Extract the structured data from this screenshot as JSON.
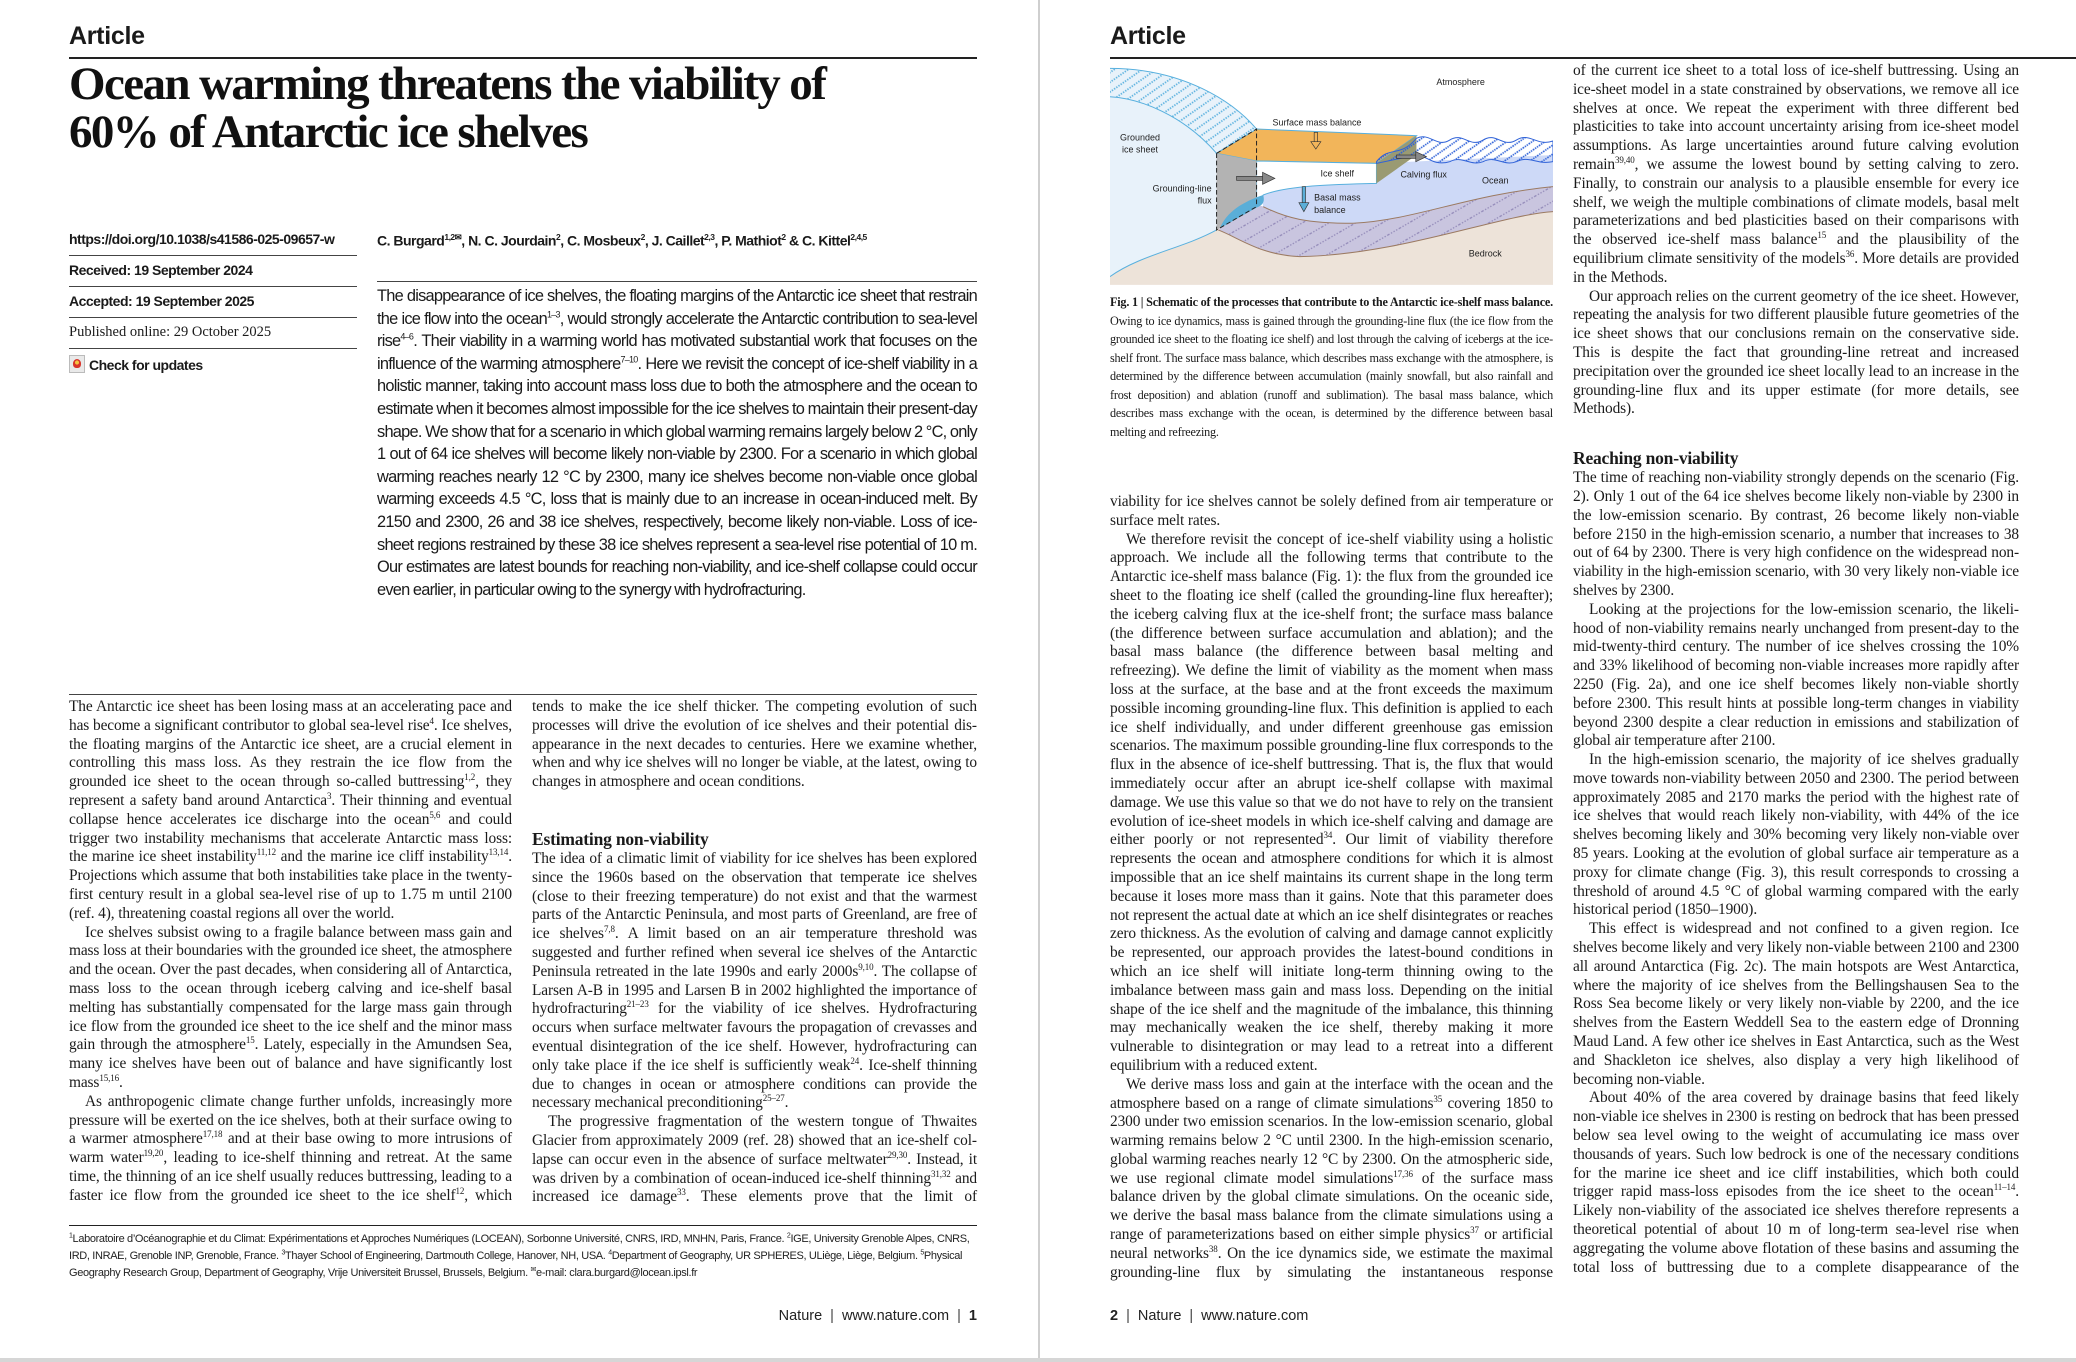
{
  "left_page": {
    "section_label": "Article",
    "title_lines": [
      "Ocean warming threatens the viability of",
      "60% of Antarctic ice shelves"
    ],
    "sidebar": {
      "doi": "https://doi.org/10.1038/s41586-025-09657-w",
      "received": "Received: 19 September 2024",
      "accepted": "Accepted: 19 September 2025",
      "published": "Published online: 29 October 2025",
      "check_updates": "Check for updates"
    },
    "authors": "C. Burgard^{1,2✉}, N. C. Jourdain^{2}, C. Mosbeux^{2}, J. Caillet^{2,3}, P. Mathiot^{2} & C. Kittel^{2,4,5}",
    "abstract": "The disappearance of ice shelves, the floating margins of the Antarctic ice sheet that restrain the ice flow into the ocean^{1–3}, would strongly accelerate the Antarctic contribution to sea-level rise^{4–6}. Their viability in a warming world has motivated substantial work that focuses on the influence of the warming atmosphere^{7–10}. Here we revisit the concept of ice-shelf viability in a holistic manner, taking into account mass loss due to both the atmosphere and the ocean to estimate when it becomes almost impossible for the ice shelves to maintain their present-day shape. We show that for a scenario in which global warming remains largely below 2 °C, only 1 out of 64 ice shelves will become likely non-viable by 2300. For a scenario in which global warming reaches nearly 12 °C by 2300, many ice shelves become non-viable once global warming exceeds 4.5 °C, loss that is mainly due to an increase in ocean-induced melt. By 2150 and 2300, 26 and 38 ice shelves, respectively, become likely non-viable. Loss of ice-sheet regions restrained by these 38 ice shelves represent a sea-level rise potential of 10 m. Our estimates are latest bounds for reaching non-viability, and ice-shelf collapse could occur even earlier, in particular owing to the synergy with hydrofracturing.",
    "col1": [
      "The Antarctic ice sheet has been losing mass at an accelerating pace and has become a significant contributor to global sea-level rise^{4}. Ice shelves, the floating margins of the Antarctic ice sheet, are a crucial element in controlling this mass loss. As they restrain the ice flow from the grounded ice sheet to the ocean through so-called buttressing^{1,2}, they represent a safety band around Antarctica^{3}. Their thinning and eventual collapse hence accelerates ice discharge into the ocean^{5,6} and could trigger two instability mechanisms that accelerate Antarctic mass loss: the marine ice sheet instability^{11,12} and the marine ice cliff instability^{13,14}. Projections which assume that both instabilities take place in the twenty-first century result in a global sea-level rise of up to 1.75 m until 2100 (ref. 4), threatening coastal regions all over the world.",
      "Ice shelves subsist owing to a fragile balance between mass gain and mass loss at their boundaries with the grounded ice sheet, the atmosphere and the ocean. Over the past decades, when considering all of Antarctica, mass loss to the ocean through iceberg calving and ice-shelf basal melting has substantially compensated for the large mass gain through ice flow from the grounded ice sheet to the ice shelf and the minor mass gain through the atmosphere^{15}. Lately, especially in the Amundsen Sea, many ice shelves have been out of balance and have significantly lost mass^{15,16}.",
      "As anthropogenic climate change further unfolds, increasingly more pressure will be exerted on the ice shelves, both at their surface owing to a warmer atmosphere^{17,18} and at their base owing to more intrusions of warm water^{19,20}, leading to ice-shelf thinning and retreat. At the same time, the thinning of an ice shelf usually reduces buttressing, leading to a faster ice flow from the grounded ice sheet to the ice shelf^{12}, which"
    ],
    "col2_cont": "tends to make the ice shelf thicker. The competing evolution of such processes will drive the evolution of ice shelves and their potential dis­appearance in the next decades to centuries. Here we examine whether, when and why ice shelves will no longer be viable, at the latest, owing to changes in atmosphere and ocean conditions.",
    "heading_estimating": "Estimating non-viability",
    "col2": [
      "The idea of a climatic limit of viability for ice shelves has been explored since the 1960s based on the observation that temperate ice shelves (close to their freezing temperature) do not exist and that the warm­est parts of the Antarctic Peninsula, and most parts of Greenland, are free of ice shelves^{7,8}. A limit based on an air temperature threshold was suggested and further refined when several ice shelves of the Antarctic Peninsula retreated in the late 1990s and early 2000s^{9,10}. The collapse of Larsen A-B in 1995 and Larsen B in 2002 highlighted the importance of hydrofracturing^{21–23} for the viability of ice shelves. Hydrofracturing occurs when surface meltwater favours the propagation of crevasses and eventual disintegration of the ice shelf. However, hydrofracturing can only take place if the ice shelf is sufficiently weak^{24}. Ice-shelf thin­ning due to changes in ocean or atmosphere conditions can provide the necessary mechanical preconditioning^{25–27}.",
      "The progressive fragmentation of the western tongue of Thwaites Glacier from approximately 2009 (ref. 28) showed that an ice-shelf col­lapse can occur even in the absence of surface meltwater^{29,30}. Instead, it was driven by a combination of ocean-induced ice-shelf thinning^{31,32} and increased ice damage^{33}. These elements prove that the limit of"
    ],
    "affiliations": "^{1}Laboratoire d’Océanographie et du Climat: Expérimentations et Approches Numériques (LOCEAN), Sorbonne Université, CNRS, IRD, MNHN, Paris, France. ^{2}IGE, University Grenoble Alpes, CNRS, IRD, INRAE, Grenoble INP, Grenoble, France. ^{3}Thayer School of Engineering, Dartmouth College, Hanover, NH, USA. ^{4}Department of Geography, UR SPHERES, ULiège, Liège, Belgium. ^{5}Physical Geography Research Group, Department of Geography, Vrije Universiteit Brussel, Brussels, Belgium. ^{✉}e-mail: clara.burgard@locean.ipsl.fr",
    "footer": {
      "journal": "Nature",
      "site": "www.nature.com",
      "page": "1"
    }
  },
  "right_page": {
    "section_label": "Article",
    "figure": {
      "labels": {
        "atmosphere": "Atmosphere",
        "surface_mass_balance": "Surface mass balance",
        "grounded_ice_sheet_1": "Grounded",
        "grounded_ice_sheet_2": "ice sheet",
        "ice_shelf": "Ice shelf",
        "grounding_line_flux_1": "Grounding-line",
        "grounding_line_flux_2": "flux",
        "basal_mass_balance_1": "Basal mass",
        "basal_mass_balance_2": "balance",
        "calving_flux": "Calving flux",
        "ocean": "Ocean",
        "bedrock": "Bedrock"
      },
      "colors": {
        "ice_shelf_top": "#f2b55a",
        "ocean": "#cdd9f7",
        "grounded_ice": "#e8f2fa",
        "bedrock": "#ede3d9",
        "sediment": "#c9c5df",
        "flux_plane": "#b3b3b3",
        "ice_outline": "#58b0de",
        "sea_surface": "#2f62d8"
      },
      "caption_bold": "Fig. 1 | Schematic of the processes that contribute to the Antarctic ice-shelf mass balance.",
      "caption_text": " Owing to ice dynamics, mass is gained through the grounding-line flux (the ice flow from the grounded ice sheet to the floating ice shelf) and lost through the calving of icebergs at the ice-shelf front. The surface mass balance, which describes mass exchange with the atmosphere, is determined by the difference between accumulation (mainly snowfall, but also rainfall and frost deposition) and ablation (runoff and sublimation). The basal mass balance, which describes mass exchange with the ocean, is determined by the difference between basal melting and refreezing."
    },
    "col1_cont": "viability for ice shelves cannot be solely defined from air temperature or surface melt rates.",
    "col1": [
      "We therefore revisit the concept of ice-shelf viability using a holistic approach. We include all the following terms that contribute to the Antarctic ice-shelf mass balance (Fig. 1): the flux from the grounded ice sheet to the floating ice shelf (called the grounding-line flux here­after); the iceberg calving flux at the ice-shelf front; the surface mass balance (the difference between surface accumulation and ablation); and the basal mass balance (the difference between basal melting and refreezing). We define the limit of viability as the moment when mass loss at the surface, at the base and at the front exceeds the maximum possible incoming grounding-line flux. This definition is applied to each ice shelf individually, and under different greenhouse gas emission scenarios. The maximum possible grounding-line flux corresponds to the flux in the absence of ice-shelf buttressing. That is, the flux that would immediately occur after an abrupt ice-shelf collapse with maxi­mal damage. We use this value so that we do not have to rely on the transient evolution of ice-sheet models in which ice-shelf calving and damage are either poorly or not represented^{34}. Our limit of viability therefore represents the ocean and atmosphere conditions for which it is almost impossible that an ice shelf maintains its current shape in the long term because it loses more mass than it gains. Note that this parameter does not represent the actual date at which an ice shelf dis­integrates or reaches zero thickness. As the evolution of calving and damage cannot explicitly be represented, our approach provides the latest-bound conditions in which an ice shelf will initiate long-term thinning owing to the imbalance between mass gain and mass loss. Depending on the initial shape of the ice shelf and the magnitude of the imbalance, this thinning may mechanically weaken the ice shelf, thereby making it more vulnerable to disintegration or may lead to a retreat into a different equilibrium with a reduced extent.",
      "We derive mass loss and gain at the interface with the ocean and the atmosphere based on a range of climate simulations^{35} covering 1850 to 2300 under two emission scenarios. In the low-emission scenario, global warming remains below 2 °C until 2300. In the high-emission scenario, global warming reaches nearly 12 °C by 2300. On the atmos­pheric side, we use regional climate model simulations^{17,36} of the surface mass balance driven by the global climate simulations. On the oceanic side, we derive the basal mass balance from the climate simulations using a range of parameterizations based on either simple physics^{37} or artificial neural networks^{38}. On the ice dynamics side, we estimate the maximal grounding-line flux by simulating the instantaneous response"
    ],
    "col2_cont": "of the current ice sheet to a total loss of ice-shelf buttressing. Using an ice-sheet model in a state constrained by observations, we remove all ice shelves at once. We repeat the experiment with three different bed plasticities to take into account uncertainty arising from ice-sheet model assumptions. As large uncertainties around future calving evolu­tion remain^{39,40}, we assume the lowest bound by setting calving to zero. Finally, to constrain our analysis to a plausible ensemble for every ice shelf, we weigh the multiple combinations of climate models, basal melt parameterizations and bed plasticities based on their compari­sons with the observed ice-shelf mass balance^{15} and the plausibility of the equilibrium climate sensitivity of the models^{36}. More details are provided in the Methods.",
    "col2_p2": "Our approach relies on the current geometry of the ice sheet. However, repeating the analysis for two different plausible future geometries of the ice sheet shows that our conclusions remain on the conservative side. This is despite the fact that grounding-line retreat and increased precipitation over the grounded ice sheet locally lead to an increase in the grounding-line flux and its upper estimate (for more details, see Methods).",
    "heading_reaching": "Reaching non-viability",
    "col2": [
      "The time of reaching non-viability strongly depends on the scenario (Fig. 2). Only 1 out of the 64 ice shelves become likely non-viable by 2300 in the low-emission scenario. By contrast, 26 become likely non-viable before 2150 in the high-emission scenario, a number that increases to 38 out of 64 by 2300. There is very high confidence on the wide­spread non-viability in the high-emission scenario, with 30 very likely non-viable ice shelves by 2300.",
      "Looking at the projections for the low-emission scenario, the likeli­hood of non-viability remains nearly unchanged from present-day to the mid-twenty-third century. The number of ice shelves crossing the 10% and 33% likelihood of becoming non-viable increases more rapidly after 2250 (Fig. 2a), and one ice shelf becomes likely non-viable shortly before 2300. This result hints at possible long-term changes in viability beyond 2300 despite a clear reduction in emissions and stabilization of global air temperature after 2100.",
      "In the high-emission scenario, the majority of ice shelves gradu­ally move towards non-viability between 2050 and 2300. The period between approximately 2085 and 2170 marks the period with the high­est rate of ice shelves that would reach likely non-viability, with 44% of the ice shelves becoming likely and 30% becoming very likely non-viable over 85 years. Looking at the evolution of global surface air temperature as a proxy for climate change (Fig. 3), this result corresponds to cross­ing a threshold of around 4.5 °C of global warming compared with the early historical period (1850–1900).",
      "This effect is widespread and not confined to a given region. Ice shelves become likely and very likely non-viable between 2100 and 2300 all around Antarctica (Fig. 2c). The main hotspots are West Ant­arctica, where the majority of ice shelves from the Bellingshausen Sea to the Ross Sea become likely or very likely non-viable by 2200, and the ice shelves from the Eastern Weddell Sea to the eastern edge of Dron­ning Maud Land. A few other ice shelves in East Antarctica, such as the West and Shackleton ice shelves, also display a very high likelihood of becoming non-viable.",
      "About 40% of the area covered by drainage basins that feed likely non-viable ice shelves in 2300 is resting on bedrock that has been pressed below sea level owing to the weight of accumulating ice mass over thousands of years. Such low bedrock is one of the necessary condi­tions for the marine ice sheet and ice cliff instabilities, which both could trigger rapid mass-loss episodes from the ice sheet to the ocean^{11–14}. Likely non-viability of the associated ice shelves therefore represents a theoretical potential of about 10 m of long-term sea-level rise when aggregating the volume above flotation of these basins and assuming the total loss of buttressing due to a complete disappearance of the"
    ],
    "footer": {
      "page": "2",
      "journal": "Nature",
      "site": "www.nature.com"
    }
  }
}
